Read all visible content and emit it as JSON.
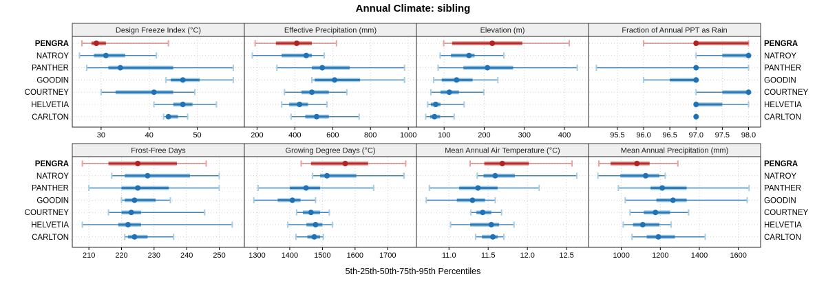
{
  "title": "Annual Climate: sibling",
  "xlabel": "5th-25th-50th-75th-95th Percentiles",
  "sites": [
    "PENGRA",
    "NATROY",
    "PANTHER",
    "GOODIN",
    "COURTNEY",
    "HELVETIA",
    "CARLTON"
  ],
  "highlight_site": "PENGRA",
  "colors": {
    "blue_main": "#2171b5",
    "blue_light": "#a6cee3",
    "red_main": "#b22222",
    "red_light": "#e8a39e",
    "strip_bg": "#efefef",
    "panel_border": "#262626",
    "gridline": "#cfcfcf",
    "text": "#000000"
  },
  "chart_data": {
    "type": "dotplot-percentiles",
    "percentile_labels": [
      "5th",
      "25th",
      "50th",
      "75th",
      "95th"
    ],
    "layout": {
      "rows": 2,
      "cols": 4,
      "legend_position": "none",
      "grid": "dotted"
    },
    "panels": [
      {
        "title": "Design Freeze Index (°C)",
        "row": 0,
        "col": 0,
        "ticks": [
          30,
          40,
          50
        ],
        "tick_labels": [
          "30",
          "40",
          "50"
        ],
        "domain": [
          24,
          59.8
        ],
        "values": [
          [
            26,
            28,
            29,
            31,
            44
          ],
          [
            25.5,
            28.5,
            31,
            35,
            41.5
          ],
          [
            27,
            31.5,
            34,
            45,
            57.5
          ],
          [
            43.5,
            44.5,
            47,
            50.5,
            57.5
          ],
          [
            30,
            33,
            41,
            45,
            49.5
          ],
          [
            41,
            45,
            47,
            49,
            54
          ],
          [
            43,
            43.5,
            44,
            46,
            48
          ]
        ]
      },
      {
        "title": "Effective Precipitation (mm)",
        "row": 0,
        "col": 1,
        "ticks": [
          200,
          400,
          600,
          800,
          1000
        ],
        "tick_labels": [
          "200",
          "400",
          "600",
          "800",
          "1000"
        ],
        "domain": [
          133,
          1043
        ],
        "values": [
          [
            190,
            300,
            410,
            490,
            620
          ],
          [
            175,
            330,
            460,
            490,
            555
          ],
          [
            305,
            490,
            545,
            690,
            980
          ],
          [
            490,
            505,
            610,
            745,
            980
          ],
          [
            345,
            435,
            490,
            580,
            675
          ],
          [
            330,
            370,
            425,
            470,
            570
          ],
          [
            380,
            455,
            515,
            580,
            740
          ]
        ]
      },
      {
        "title": "Elevation (m)",
        "row": 0,
        "col": 2,
        "ticks": [
          100,
          200,
          300,
          400
        ],
        "tick_labels": [
          "100",
          "200",
          "300",
          "400"
        ],
        "domain": [
          31,
          460
        ],
        "values": [
          [
            99,
            120,
            220,
            295,
            412
          ],
          [
            90,
            117,
            162,
            176,
            249
          ],
          [
            85,
            148,
            208,
            272,
            432
          ],
          [
            74,
            94,
            131,
            171,
            234
          ],
          [
            67,
            91,
            113,
            137,
            199
          ],
          [
            59,
            67,
            79,
            91,
            150
          ],
          [
            54,
            65,
            76,
            90,
            125
          ]
        ]
      },
      {
        "title": "Fraction of Annual PPT as Rain",
        "row": 0,
        "col": 3,
        "ticks": [
          95.5,
          96,
          96.5,
          97,
          97.5,
          98
        ],
        "tick_labels": [
          "95.5",
          "96.0",
          "96.5",
          "97.0",
          "97.5",
          "98.0"
        ],
        "domain": [
          94.95,
          98.23
        ],
        "values": [
          [
            96,
            97,
            97,
            98,
            98
          ],
          [
            97,
            97.5,
            98,
            98,
            98
          ],
          [
            95.1,
            97,
            97,
            97,
            98
          ],
          [
            96,
            96.5,
            97,
            97,
            97
          ],
          [
            97,
            97.5,
            98,
            98,
            98
          ],
          [
            97,
            97,
            97,
            97.5,
            98
          ],
          [
            97,
            97,
            97,
            97,
            97
          ]
        ]
      },
      {
        "title": "Frost-Free Days",
        "row": 1,
        "col": 0,
        "ticks": [
          210,
          220,
          230,
          240,
          250
        ],
        "tick_labels": [
          "210",
          "220",
          "230",
          "240",
          "250"
        ],
        "domain": [
          204.9,
          257.7
        ],
        "values": [
          [
            208,
            216,
            225,
            237,
            246
          ],
          [
            217,
            221,
            228,
            241,
            250
          ],
          [
            210,
            220,
            225,
            234.5,
            250
          ],
          [
            220,
            221,
            224,
            230.5,
            235
          ],
          [
            216,
            220,
            223,
            226,
            245.5
          ],
          [
            208,
            219,
            222,
            226,
            254
          ],
          [
            221,
            222,
            224,
            228,
            236
          ]
        ]
      },
      {
        "title": "Growing Degree Days (°C)",
        "row": 1,
        "col": 1,
        "ticks": [
          1300,
          1400,
          1500,
          1600,
          1700
        ],
        "tick_labels": [
          "1300",
          "1400",
          "1500",
          "1600",
          "1700"
        ],
        "domain": [
          1261,
          1788
        ],
        "values": [
          [
            1435,
            1465,
            1570,
            1640,
            1755
          ],
          [
            1470,
            1493,
            1514,
            1604,
            1750
          ],
          [
            1303,
            1400,
            1450,
            1493,
            1657
          ],
          [
            1290,
            1363,
            1408,
            1433,
            1479
          ],
          [
            1421,
            1440,
            1465,
            1493,
            1521
          ],
          [
            1394,
            1451,
            1479,
            1500,
            1531
          ],
          [
            1419,
            1454,
            1475,
            1493,
            1503
          ]
        ]
      },
      {
        "title": "Mean Annual Air Temperature (°C)",
        "row": 1,
        "col": 2,
        "ticks": [
          11,
          11.5,
          12,
          12.5
        ],
        "tick_labels": [
          "11.0",
          "11.5",
          "12.0",
          "12.5"
        ],
        "domain": [
          10.585,
          12.78
        ],
        "values": [
          [
            11.27,
            11.45,
            11.68,
            12.02,
            12.57
          ],
          [
            11.36,
            11.44,
            11.59,
            11.84,
            12.63
          ],
          [
            10.75,
            11.13,
            11.37,
            11.62,
            12.15
          ],
          [
            10.71,
            11.1,
            11.3,
            11.46,
            11.59
          ],
          [
            11.28,
            11.35,
            11.43,
            11.54,
            11.67
          ],
          [
            11.02,
            11.27,
            11.54,
            11.64,
            11.83
          ],
          [
            11.34,
            11.42,
            11.56,
            11.62,
            11.7
          ]
        ]
      },
      {
        "title": "Mean Annual Precipitation (mm)",
        "row": 1,
        "col": 3,
        "ticks": [
          1000,
          1200,
          1400,
          1600
        ],
        "tick_labels": [
          "1000",
          "1200",
          "1400",
          "1600"
        ],
        "domain": [
          832,
          1714
        ],
        "values": [
          [
            885,
            945,
            1080,
            1145,
            1290
          ],
          [
            880,
            995,
            1125,
            1195,
            1225
          ],
          [
            985,
            1150,
            1210,
            1335,
            1655
          ],
          [
            1020,
            1180,
            1265,
            1335,
            1645
          ],
          [
            1045,
            1115,
            1175,
            1250,
            1345
          ],
          [
            1010,
            1060,
            1110,
            1195,
            1255
          ],
          [
            1055,
            1130,
            1190,
            1275,
            1430
          ]
        ]
      }
    ]
  }
}
